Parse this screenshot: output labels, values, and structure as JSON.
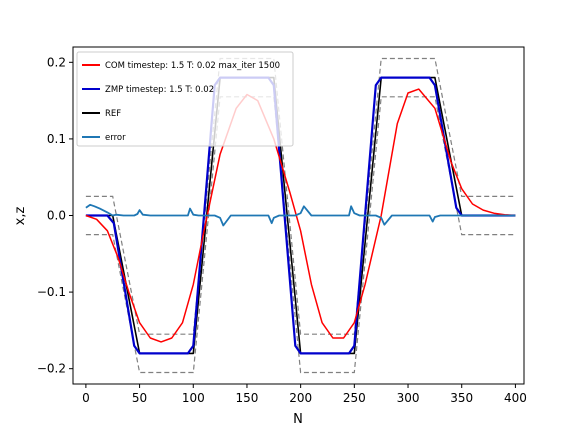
{
  "chart_data": {
    "type": "line",
    "title": "",
    "xlabel": "N",
    "ylabel": "x,z",
    "xlim": [
      -12,
      408
    ],
    "ylim": [
      -0.22,
      0.22
    ],
    "xticks": [
      0,
      50,
      100,
      150,
      200,
      250,
      300,
      350,
      400
    ],
    "yticks": [
      0.2,
      0.1,
      0.0,
      -0.1,
      -0.2
    ],
    "xtick_labels": [
      "0",
      "50",
      "100",
      "150",
      "200",
      "250",
      "300",
      "350",
      "400"
    ],
    "ytick_labels": [
      "0.2",
      "0.1",
      "0.0",
      "−0.1",
      "−0.2"
    ],
    "grid": false,
    "legend_position": "upper-left",
    "series": [
      {
        "name": "COM  timestep: 1.5 T: 0.02 max_iter 1500",
        "color": "#ff0000",
        "style": "solid",
        "x": [
          0,
          10,
          20,
          30,
          40,
          50,
          60,
          70,
          80,
          90,
          100,
          110,
          125,
          140,
          150,
          160,
          175,
          190,
          200,
          210,
          220,
          230,
          240,
          250,
          260,
          275,
          290,
          300,
          310,
          325,
          340,
          350,
          360,
          370,
          380,
          390,
          400
        ],
        "y": [
          0.0,
          -0.005,
          -0.02,
          -0.055,
          -0.1,
          -0.14,
          -0.16,
          -0.165,
          -0.16,
          -0.14,
          -0.09,
          -0.02,
          0.08,
          0.14,
          0.158,
          0.15,
          0.1,
          0.03,
          -0.02,
          -0.09,
          -0.14,
          -0.16,
          -0.16,
          -0.14,
          -0.09,
          0.0,
          0.12,
          0.16,
          0.165,
          0.14,
          0.07,
          0.035,
          0.015,
          0.007,
          0.003,
          0.001,
          0.0
        ]
      },
      {
        "name": "ZMP  timestep: 1.5 T: 0.02",
        "color": "#0000cc",
        "style": "solid",
        "x": [
          0,
          20,
          26,
          45,
          50,
          95,
          100,
          120,
          125,
          170,
          175,
          195,
          200,
          245,
          250,
          270,
          275,
          320,
          325,
          345,
          350,
          400
        ],
        "y": [
          0.0,
          0.0,
          -0.01,
          -0.17,
          -0.18,
          -0.18,
          -0.17,
          0.17,
          0.18,
          0.18,
          0.17,
          -0.17,
          -0.18,
          -0.18,
          -0.17,
          0.17,
          0.18,
          0.18,
          0.17,
          0.01,
          0.0,
          0.0
        ]
      },
      {
        "name": "REF",
        "color": "#000000",
        "style": "solid",
        "x": [
          0,
          25,
          50,
          100,
          125,
          175,
          200,
          250,
          275,
          325,
          350,
          400
        ],
        "y": [
          0.0,
          0.0,
          -0.18,
          -0.18,
          0.18,
          0.18,
          -0.18,
          -0.18,
          0.18,
          0.18,
          0.0,
          0.0
        ]
      },
      {
        "name": "error",
        "color": "#1f77b4",
        "style": "solid",
        "x": [
          0,
          4,
          8,
          13,
          20,
          25,
          28,
          35,
          45,
          48,
          50,
          53,
          60,
          95,
          97,
          100,
          105,
          120,
          125,
          128,
          135,
          170,
          173,
          175,
          180,
          195,
          200,
          203,
          210,
          245,
          247,
          250,
          255,
          270,
          275,
          278,
          285,
          320,
          323,
          325,
          330,
          345,
          350,
          400
        ],
        "y": [
          0.01,
          0.014,
          0.012,
          0.009,
          0.004,
          0.0,
          0.001,
          0.0,
          0.0,
          0.002,
          0.007,
          0.001,
          0.0,
          0.0,
          0.009,
          0.001,
          0.0,
          0.0,
          -0.003,
          -0.013,
          0.0,
          0.0,
          -0.01,
          -0.003,
          0.0,
          0.0,
          0.003,
          0.012,
          0.0,
          0.0,
          0.012,
          0.003,
          0.0,
          0.0,
          -0.003,
          -0.012,
          0.0,
          0.0,
          -0.008,
          -0.002,
          0.0,
          0.0,
          0.0,
          0.0
        ]
      }
    ],
    "bounds": {
      "color": "#808080",
      "style": "dashed",
      "upper": {
        "x": [
          0,
          25,
          50,
          100,
          125,
          175,
          200,
          250,
          275,
          325,
          350,
          400
        ],
        "y": [
          0.025,
          0.025,
          -0.155,
          -0.155,
          0.205,
          0.205,
          -0.155,
          -0.155,
          0.205,
          0.205,
          0.025,
          0.025
        ]
      },
      "lower": {
        "x": [
          0,
          25,
          50,
          100,
          125,
          175,
          200,
          250,
          275,
          325,
          350,
          400
        ],
        "y": [
          -0.025,
          -0.025,
          -0.205,
          -0.205,
          0.155,
          0.155,
          -0.205,
          -0.205,
          0.155,
          0.155,
          -0.025,
          -0.025
        ]
      }
    }
  }
}
